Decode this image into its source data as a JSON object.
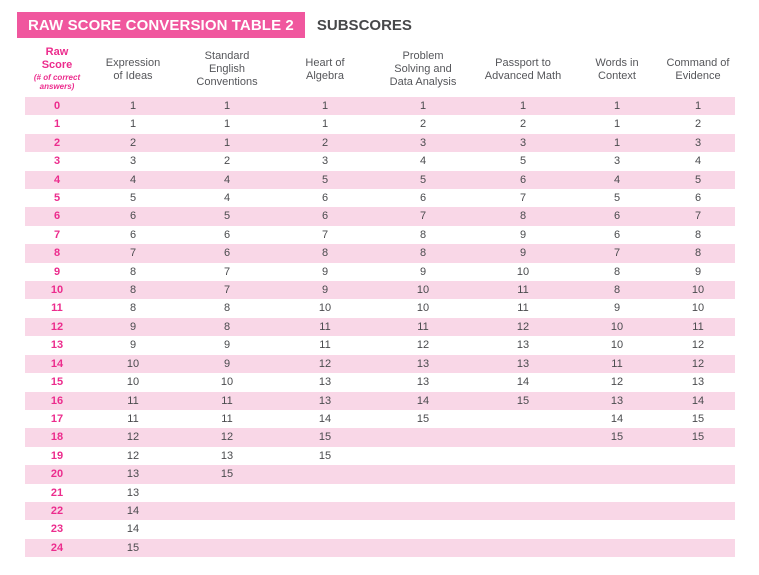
{
  "title_bar": {
    "title": "RAW SCORE CONVERSION TABLE 2",
    "subtitle": "SUBSCORES"
  },
  "colors": {
    "accent_pink": "#f0579e",
    "stripe_pink": "#f9d7e7",
    "raw_score_pink": "#ec2c8d",
    "header_text_gray": "#55565a",
    "subtitle_gray": "#47484a",
    "title_text": "#ffffff"
  },
  "table": {
    "columns": [
      {
        "key": "raw-score",
        "accent": true,
        "lines": [
          "Raw",
          "Score"
        ],
        "sublines": [
          "(# of correct",
          "answers)"
        ]
      },
      {
        "key": "expression-of-ideas",
        "lines": [
          "Expression",
          "of Ideas"
        ]
      },
      {
        "key": "standard-english-conventions",
        "lines": [
          "Standard",
          "English",
          "Conventions"
        ]
      },
      {
        "key": "heart-of-algebra",
        "lines": [
          "Heart of",
          "Algebra"
        ]
      },
      {
        "key": "problem-solving-data-analysis",
        "lines": [
          "Problem",
          "Solving and",
          "Data Analysis"
        ]
      },
      {
        "key": "passport-advanced-math",
        "lines": [
          "Passport to",
          "Advanced Math"
        ]
      },
      {
        "key": "words-in-context",
        "lines": [
          "Words in",
          "Context"
        ]
      },
      {
        "key": "command-of-evidence",
        "lines": [
          "Command of",
          "Evidence"
        ]
      }
    ],
    "rows": [
      {
        "raw": "0",
        "values": [
          "1",
          "1",
          "1",
          "1",
          "1",
          "1",
          "1"
        ]
      },
      {
        "raw": "1",
        "values": [
          "1",
          "1",
          "1",
          "2",
          "2",
          "1",
          "2"
        ]
      },
      {
        "raw": "2",
        "values": [
          "2",
          "1",
          "2",
          "3",
          "3",
          "1",
          "3"
        ]
      },
      {
        "raw": "3",
        "values": [
          "3",
          "2",
          "3",
          "4",
          "5",
          "3",
          "4"
        ]
      },
      {
        "raw": "4",
        "values": [
          "4",
          "4",
          "5",
          "5",
          "6",
          "4",
          "5"
        ]
      },
      {
        "raw": "5",
        "values": [
          "5",
          "4",
          "6",
          "6",
          "7",
          "5",
          "6"
        ]
      },
      {
        "raw": "6",
        "values": [
          "6",
          "5",
          "6",
          "7",
          "8",
          "6",
          "7"
        ]
      },
      {
        "raw": "7",
        "values": [
          "6",
          "6",
          "7",
          "8",
          "9",
          "6",
          "8"
        ]
      },
      {
        "raw": "8",
        "values": [
          "7",
          "6",
          "8",
          "8",
          "9",
          "7",
          "8"
        ]
      },
      {
        "raw": "9",
        "values": [
          "8",
          "7",
          "9",
          "9",
          "10",
          "8",
          "9"
        ]
      },
      {
        "raw": "10",
        "values": [
          "8",
          "7",
          "9",
          "10",
          "11",
          "8",
          "10"
        ]
      },
      {
        "raw": "11",
        "values": [
          "8",
          "8",
          "10",
          "10",
          "11",
          "9",
          "10"
        ]
      },
      {
        "raw": "12",
        "values": [
          "9",
          "8",
          "11",
          "11",
          "12",
          "10",
          "11"
        ]
      },
      {
        "raw": "13",
        "values": [
          "9",
          "9",
          "11",
          "12",
          "13",
          "10",
          "12"
        ]
      },
      {
        "raw": "14",
        "values": [
          "10",
          "9",
          "12",
          "13",
          "13",
          "11",
          "12"
        ]
      },
      {
        "raw": "15",
        "values": [
          "10",
          "10",
          "13",
          "13",
          "14",
          "12",
          "13"
        ]
      },
      {
        "raw": "16",
        "values": [
          "11",
          "11",
          "13",
          "14",
          "15",
          "13",
          "14"
        ]
      },
      {
        "raw": "17",
        "values": [
          "11",
          "11",
          "14",
          "15",
          "",
          "14",
          "15"
        ]
      },
      {
        "raw": "18",
        "values": [
          "12",
          "12",
          "15",
          "",
          "",
          "15",
          "15"
        ]
      },
      {
        "raw": "19",
        "values": [
          "12",
          "13",
          "15",
          "",
          "",
          "",
          ""
        ]
      },
      {
        "raw": "20",
        "values": [
          "13",
          "15",
          "",
          "",
          "",
          "",
          ""
        ]
      },
      {
        "raw": "21",
        "values": [
          "13",
          "",
          "",
          "",
          "",
          "",
          ""
        ]
      },
      {
        "raw": "22",
        "values": [
          "14",
          "",
          "",
          "",
          "",
          "",
          ""
        ]
      },
      {
        "raw": "23",
        "values": [
          "14",
          "",
          "",
          "",
          "",
          "",
          ""
        ]
      },
      {
        "raw": "24",
        "values": [
          "15",
          "",
          "",
          "",
          "",
          "",
          ""
        ]
      }
    ]
  }
}
